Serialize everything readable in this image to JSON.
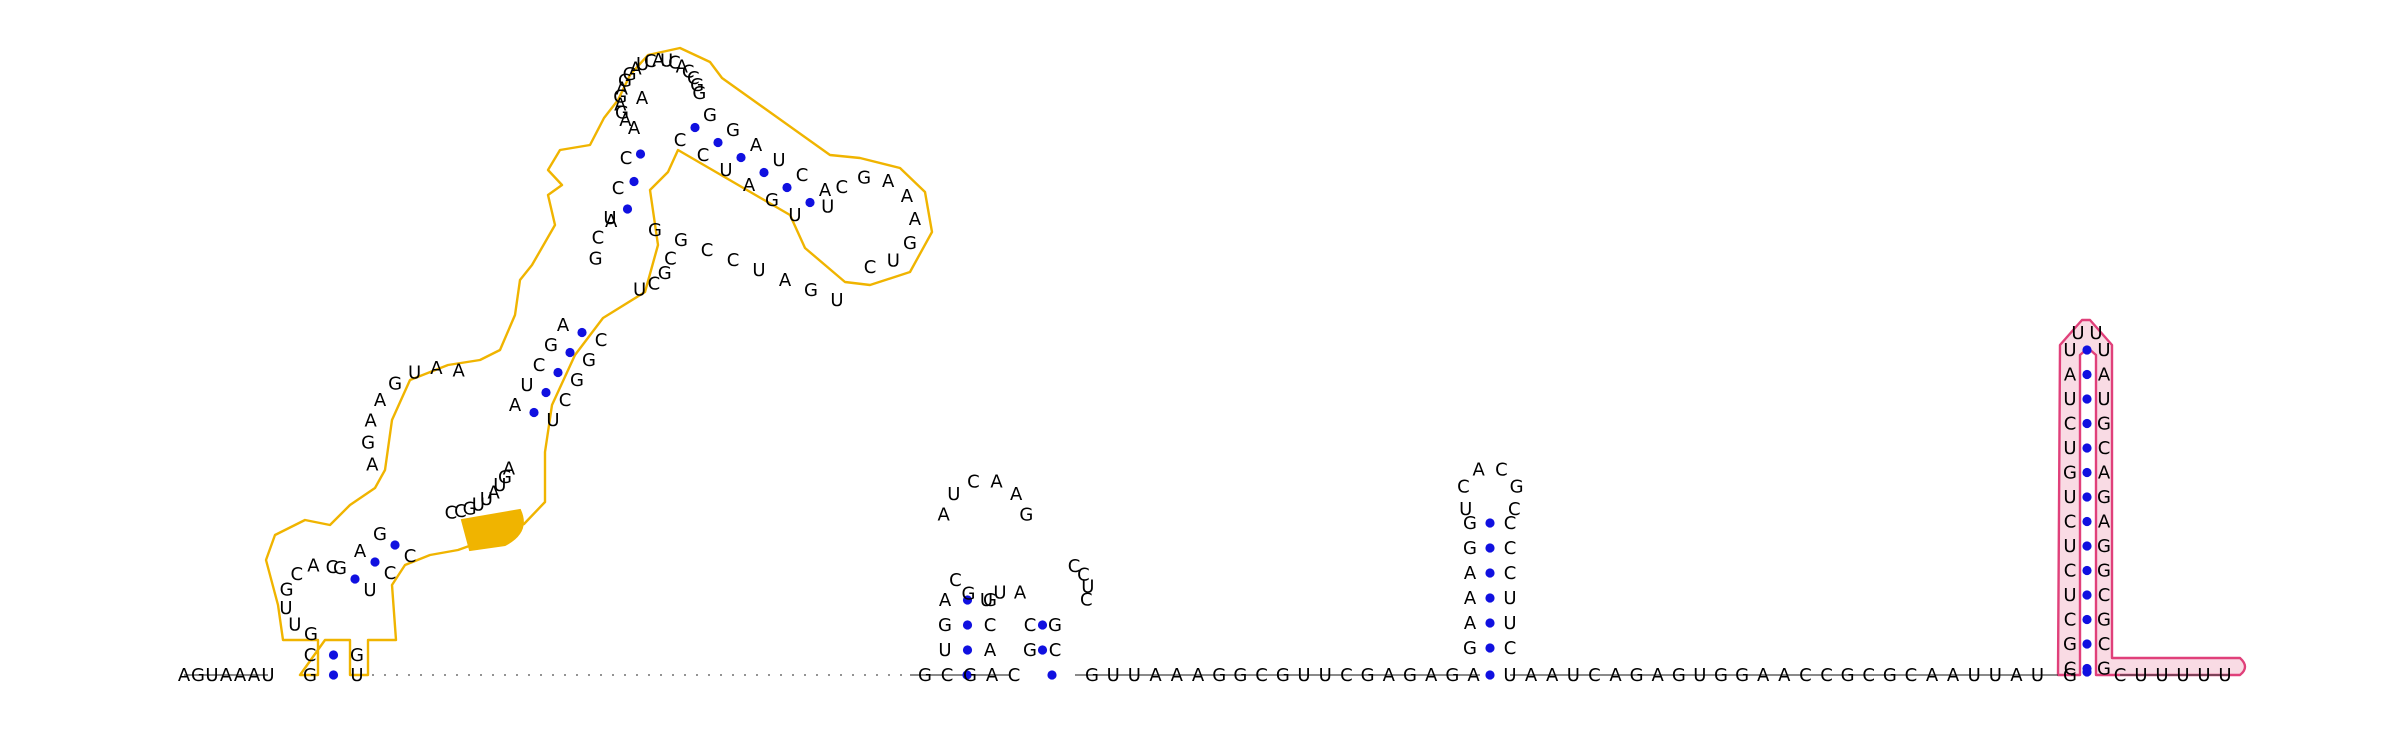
{
  "colors": {
    "bases": "#000000",
    "pair_dots": "#1010e0",
    "domain_highlight": "#f0b400",
    "terminator_highlight": "#e0407a",
    "terminator_fill": "#f9dbe4"
  },
  "segments": {
    "lead": "AGUAAAU",
    "tail": "UUAAAGGCGUUCGAGAGAUAAUCAGAGUGGAACCGCGCAAUUAUG"
  },
  "structures": {
    "large_domain": {
      "stems": {
        "base_stem_5": "CG",
        "base_stem_3": "GU",
        "small_loop": "GUUGCAC",
        "stem2_5": "GAG",
        "stem2_3": "UCC",
        "interior_5": "AGAAGUAA",
        "interior_3": "CCGUUAUGA",
        "long_stem_5": "AUCGA",
        "long_stem_3": "UCGGC",
        "mid_loop": "GCA",
        "mid_loop_3": "UCGC",
        "upper_5": "UCCAA",
        "upper_3": "GGCCUAGU",
        "apical": "AGAGAGGAUCAUCACCGG",
        "right_loop": "UCGAAAGUC"
      },
      "highlighted_bases": "CGU"
    },
    "hairpin_1": {
      "left_column": "UAGCGU",
      "top": "AUCAAG",
      "right_column": "CGCUCAAUG",
      "inner": "GAUCACGUC"
    },
    "hairpin_2": {
      "left": "GAAAGG",
      "loop": "UCACGC",
      "right": "CUUCCC"
    },
    "terminator": {
      "left_stem": "UAUCUGUCUCUCGCG",
      "loop": "UU",
      "right_stem": "UAUGCAGAGGCG",
      "tail": "CUUUUU"
    }
  },
  "gap_label": "·"
}
